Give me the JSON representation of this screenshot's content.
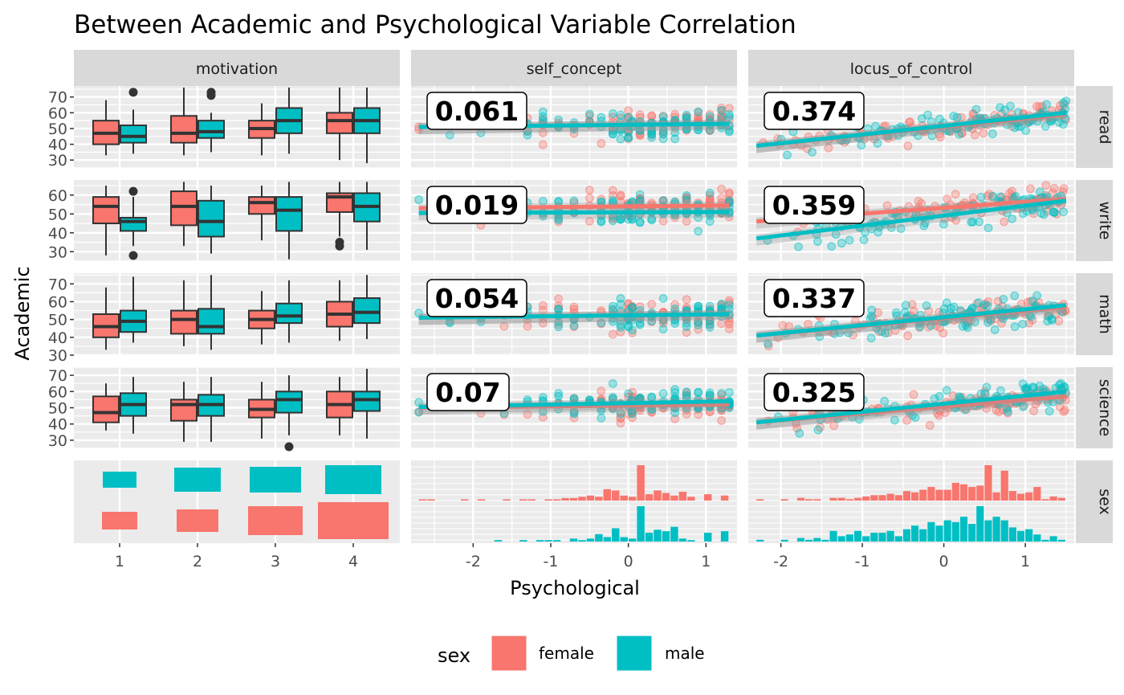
{
  "chart_data": {
    "type": "faceted-matrix",
    "title": "Between Academic and Psychological Variable Correlation",
    "xlabel": "Psychological",
    "ylabel": "Academic",
    "column_facets": [
      "motivation",
      "self_concept",
      "locus_of_control"
    ],
    "row_facets": [
      "read",
      "write",
      "math",
      "science",
      "sex"
    ],
    "colors": {
      "female": "#F8766D",
      "male": "#00BFC4",
      "panel_bg": "#EBEBEB",
      "strip_bg": "#D9D9D9",
      "outline": "#333333"
    },
    "legend": {
      "title": "sex",
      "position": "bottom",
      "entries": [
        "female",
        "male"
      ]
    },
    "axes": {
      "motivation_x": {
        "ticks": [
          "1",
          "2",
          "3",
          "4"
        ]
      },
      "self_concept_x": {
        "range": [
          -2.8,
          1.4
        ],
        "ticks": [
          -2,
          -1,
          0,
          1
        ],
        "tick_labels": [
          "-2",
          "-1",
          "0",
          "1"
        ]
      },
      "locus_x": {
        "range": [
          -2.4,
          1.6
        ],
        "ticks": [
          -2,
          -1,
          0,
          1
        ],
        "tick_labels": [
          "-2",
          "-1",
          "0",
          "1"
        ]
      },
      "read_y": {
        "range": [
          25,
          77
        ],
        "ticks": [
          30,
          40,
          50,
          60,
          70
        ],
        "tick_labels": [
          "30",
          "40",
          "50",
          "60",
          "70"
        ]
      },
      "write_y": {
        "range": [
          25,
          68
        ],
        "ticks": [
          30,
          40,
          50,
          60
        ],
        "tick_labels": [
          "30",
          "40",
          "50",
          "60"
        ]
      },
      "math_y": {
        "range": [
          30,
          76
        ],
        "ticks": [
          30,
          40,
          50,
          60,
          70
        ],
        "tick_labels": [
          "30",
          "40",
          "50",
          "60",
          "70"
        ]
      },
      "science_y": {
        "range": [
          25,
          75
        ],
        "ticks": [
          30,
          40,
          50,
          60,
          70
        ],
        "tick_labels": [
          "30",
          "40",
          "50",
          "60",
          "70"
        ]
      }
    },
    "correlations": {
      "self_concept": {
        "read": "0.061",
        "write": "0.019",
        "math": "0.054",
        "science": "0.07"
      },
      "locus_of_control": {
        "read": "0.374",
        "write": "0.359",
        "math": "0.337",
        "science": "0.325"
      }
    },
    "boxplots": {
      "read": {
        "female": [
          [
            33,
            40,
            47,
            55,
            68
          ],
          [
            33,
            41,
            47,
            58,
            76
          ],
          [
            33,
            44,
            50,
            55,
            66
          ],
          [
            30,
            47,
            55,
            60,
            76
          ]
        ],
        "male": [
          [
            34,
            41,
            45,
            52,
            62,
            [
              73
            ]
          ],
          [
            35,
            44,
            48,
            55,
            60,
            [
              73,
              71
            ]
          ],
          [
            34,
            47,
            55,
            63,
            76
          ],
          [
            28,
            47,
            55,
            63,
            76
          ]
        ]
      },
      "write": {
        "female": [
          [
            28,
            45,
            54,
            59,
            65
          ],
          [
            33,
            44,
            54,
            62,
            67
          ],
          [
            36,
            50,
            56,
            59,
            65
          ],
          [
            38,
            51,
            59,
            61,
            67,
            [
              35,
              33
            ]
          ]
        ],
        "male": [
          [
            33,
            41,
            46,
            48,
            59,
            [
              62,
              28
            ]
          ],
          [
            29,
            38,
            46,
            57,
            65
          ],
          [
            26,
            41,
            52,
            59,
            67
          ],
          [
            31,
            46,
            54,
            61,
            67
          ]
        ]
      },
      "math": {
        "female": [
          [
            33,
            40,
            46,
            53,
            68
          ],
          [
            35,
            42,
            50,
            55,
            72
          ],
          [
            36,
            45,
            50,
            55,
            66
          ],
          [
            38,
            46,
            53,
            60,
            72
          ]
        ],
        "male": [
          [
            37,
            43,
            49,
            55,
            74
          ],
          [
            33,
            42,
            46,
            56,
            75
          ],
          [
            37,
            48,
            52,
            59,
            72
          ],
          [
            39,
            48,
            54,
            62,
            75
          ]
        ]
      },
      "science": {
        "female": [
          [
            36,
            41,
            47,
            57,
            65
          ],
          [
            29,
            42,
            52,
            55,
            66
          ],
          [
            31,
            44,
            49,
            55,
            66
          ],
          [
            33,
            44,
            52,
            60,
            69
          ]
        ],
        "male": [
          [
            34,
            45,
            52,
            59,
            69
          ],
          [
            29,
            45,
            52,
            58,
            69
          ],
          [
            33,
            47,
            55,
            60,
            70,
            [
              26
            ]
          ],
          [
            31,
            48,
            55,
            60,
            74
          ]
        ]
      }
    },
    "regression_lines": {
      "self_concept": {
        "read": {
          "female": [
            [
              -2.7,
              51
            ],
            [
              1.3,
              53
            ]
          ],
          "male": [
            [
              -2.7,
              51
            ],
            [
              1.3,
              53
            ]
          ]
        },
        "write": {
          "female": [
            [
              -2.7,
              53
            ],
            [
              1.3,
              54.5
            ]
          ],
          "male": [
            [
              -2.7,
              50.5
            ],
            [
              1.3,
              51
            ]
          ]
        },
        "math": {
          "female": [
            [
              -2.7,
              51
            ],
            [
              1.3,
              53
            ]
          ],
          "male": [
            [
              -2.7,
              51
            ],
            [
              1.3,
              53
            ]
          ]
        },
        "science": {
          "female": [
            [
              -2.7,
              50
            ],
            [
              1.3,
              52
            ]
          ],
          "male": [
            [
              -2.7,
              50.5
            ],
            [
              1.3,
              54
            ]
          ]
        }
      },
      "locus_of_control": {
        "read": {
          "female": [
            [
              -2.3,
              39
            ],
            [
              1.5,
              59
            ]
          ],
          "male": [
            [
              -2.3,
              39
            ],
            [
              1.5,
              60
            ]
          ]
        },
        "write": {
          "female": [
            [
              -2.3,
              46
            ],
            [
              1.5,
              58
            ]
          ],
          "male": [
            [
              -2.3,
              37
            ],
            [
              1.5,
              57
            ]
          ]
        },
        "math": {
          "female": [
            [
              -2.3,
              41
            ],
            [
              1.5,
              57
            ]
          ],
          "male": [
            [
              -2.3,
              41
            ],
            [
              1.5,
              58
            ]
          ]
        },
        "science": {
          "female": [
            [
              -2.3,
              41
            ],
            [
              1.5,
              57
            ]
          ],
          "male": [
            [
              -2.3,
              41
            ],
            [
              1.5,
              60
            ]
          ]
        }
      }
    },
    "mosaic_counts": {
      "female": [
        17,
        19,
        43,
        60
      ],
      "male": [
        15,
        23,
        24,
        36
      ]
    },
    "histograms": {
      "self_concept": {
        "female": [
          1,
          1,
          0,
          0,
          0,
          1,
          0,
          1,
          0,
          0,
          1,
          0,
          1,
          1,
          0,
          1,
          1,
          2,
          2,
          3,
          4,
          3,
          9,
          8,
          4,
          3,
          28,
          5,
          8,
          6,
          4,
          7,
          3,
          0,
          5,
          0,
          4
        ],
        "male": [
          0,
          0,
          0,
          0,
          0,
          0,
          0,
          0,
          0,
          1,
          0,
          0,
          1,
          0,
          1,
          1,
          1,
          0,
          2,
          1,
          2,
          5,
          3,
          9,
          3,
          2,
          24,
          6,
          8,
          7,
          10,
          2,
          1,
          0,
          6,
          0,
          7
        ]
      },
      "locus_of_control": {
        "female": [
          1,
          0,
          0,
          1,
          0,
          2,
          1,
          1,
          0,
          2,
          2,
          1,
          2,
          3,
          4,
          4,
          5,
          4,
          7,
          6,
          8,
          10,
          8,
          8,
          13,
          12,
          10,
          11,
          26,
          6,
          22,
          7,
          5,
          6,
          10,
          1,
          3,
          2
        ],
        "male": [
          1,
          0,
          0,
          1,
          0,
          2,
          1,
          2,
          1,
          6,
          3,
          4,
          6,
          3,
          5,
          5,
          6,
          3,
          7,
          9,
          7,
          11,
          9,
          12,
          11,
          14,
          10,
          20,
          12,
          14,
          12,
          8,
          6,
          7,
          4,
          1,
          3,
          1
        ]
      }
    }
  }
}
